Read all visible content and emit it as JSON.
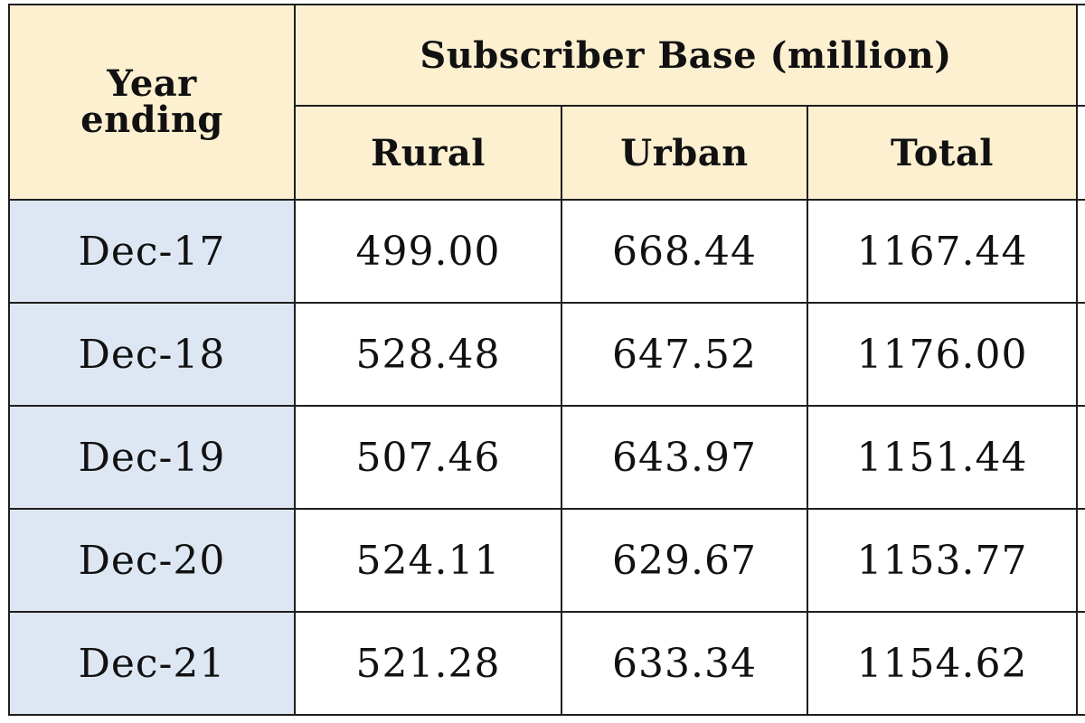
{
  "table": {
    "header": {
      "year_line1": "Year",
      "year_line2": "ending",
      "group": "Subscriber Base (million)",
      "columns": [
        "Rural",
        "Urban",
        "Total"
      ]
    },
    "rows": [
      {
        "year": "Dec-17",
        "rural": "499.00",
        "urban": "668.44",
        "total": "1167.44"
      },
      {
        "year": "Dec-18",
        "rural": "528.48",
        "urban": "647.52",
        "total": "1176.00"
      },
      {
        "year": "Dec-19",
        "rural": "507.46",
        "urban": "643.97",
        "total": "1151.44"
      },
      {
        "year": "Dec-20",
        "rural": "524.11",
        "urban": "629.67",
        "total": "1153.77"
      },
      {
        "year": "Dec-21",
        "rural": "521.28",
        "urban": "633.34",
        "total": "1154.62"
      }
    ],
    "colors": {
      "header_bg": "#fdf0d0",
      "year_column_bg": "#dde7f4",
      "cell_bg": "#ffffff",
      "border": "#1e1e1e"
    }
  }
}
